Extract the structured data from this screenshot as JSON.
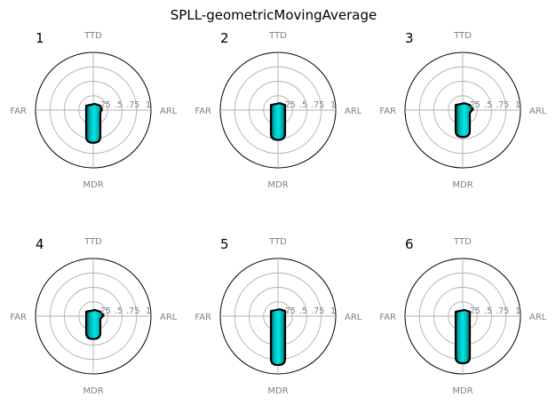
{
  "chart_data": {
    "type": "radar",
    "title": "SPLL-geometricMovingAverage",
    "axes": [
      "TTD",
      "ARL",
      "MDR",
      "FAR"
    ],
    "radial_ticks": [
      ".25",
      ".5",
      ".75",
      "1"
    ],
    "radial_tick_values": [
      0.25,
      0.5,
      0.75,
      1.0
    ],
    "rlim": [
      0,
      1
    ],
    "grid": true,
    "colors": {
      "line": "#000000",
      "fill_outer": "#004d4d",
      "fill_inner": "#00e5e5",
      "grid": "#b0b0b0",
      "text": "#808080"
    },
    "panels": [
      {
        "label": "1",
        "values": {
          "TTD": 0.1,
          "ARL": 0.15,
          "MDR": 0.55,
          "FAR": 0.1
        }
      },
      {
        "label": "2",
        "values": {
          "TTD": 0.12,
          "ARL": 0.12,
          "MDR": 0.5,
          "FAR": 0.12
        }
      },
      {
        "label": "3",
        "values": {
          "TTD": 0.12,
          "ARL": 0.18,
          "MDR": 0.45,
          "FAR": 0.12
        }
      },
      {
        "label": "4",
        "values": {
          "TTD": 0.08,
          "ARL": 0.18,
          "MDR": 0.38,
          "FAR": 0.08
        }
      },
      {
        "label": "5",
        "values": {
          "TTD": 0.12,
          "ARL": 0.12,
          "MDR": 0.83,
          "FAR": 0.12
        }
      },
      {
        "label": "6",
        "values": {
          "TTD": 0.1,
          "ARL": 0.1,
          "MDR": 0.8,
          "FAR": 0.1
        }
      }
    ]
  }
}
